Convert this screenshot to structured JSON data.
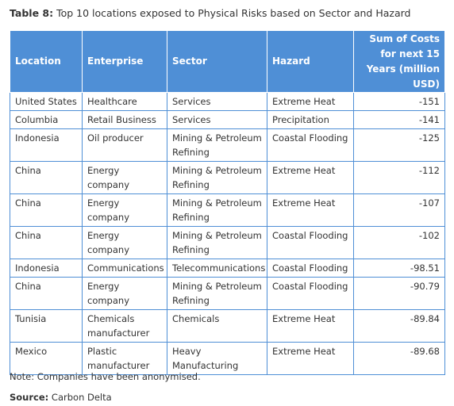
{
  "title": {
    "label": "Table 8:",
    "text": "Top 10 locations exposed to Physical Risks based on Sector and Hazard"
  },
  "table": {
    "header": [
      "Location",
      "Enterprise",
      "Sector",
      "Hazard",
      "Sum of Costs for next 15 Years (million USD)"
    ],
    "rows": [
      [
        "United States",
        "Healthcare",
        "Services",
        "Extreme Heat",
        -151
      ],
      [
        "Columbia",
        "Retail Business",
        "Services",
        "Precipitation",
        -141
      ],
      [
        "Indonesia",
        "Oil producer",
        "Mining & Petroleum Refining",
        "Coastal Flooding",
        -125
      ],
      [
        "China",
        "Energy company",
        "Mining & Petroleum Refining",
        "Extreme Heat",
        -112
      ],
      [
        "China",
        "Energy company",
        "Mining & Petroleum Refining",
        "Extreme Heat",
        -107
      ],
      [
        "China",
        "Energy company",
        "Mining & Petroleum Refining",
        "Coastal Flooding",
        -102
      ],
      [
        "Indonesia",
        "Communications",
        "Telecommunications",
        "Coastal Flooding",
        -98.51
      ],
      [
        "China",
        "Energy company",
        "Mining & Petroleum Refining",
        "Coastal Flooding",
        -90.79
      ],
      [
        "Tunisia",
        "Chemicals manufacturer",
        "Chemicals",
        "Extreme Heat",
        -89.84
      ],
      [
        "Mexico",
        "Plastic manufacturer",
        "Heavy Manufacturing",
        "Extreme Heat",
        -89.68
      ]
    ]
  },
  "note": "Note:  Companies have been anonymised.",
  "source": {
    "label": "Source:",
    "text": "Carbon Delta"
  }
}
